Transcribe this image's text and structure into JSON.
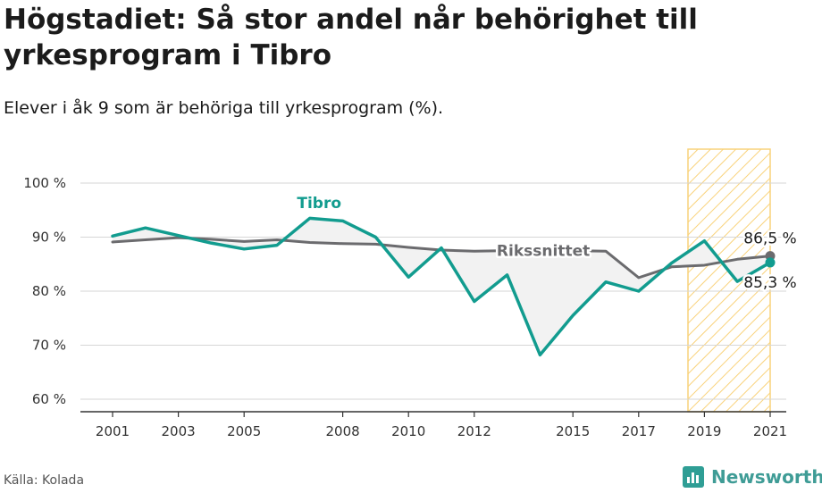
{
  "header": {
    "title": "Högstadiet: Så stor andel når behörighet till yrkesprogram i Tibro",
    "subtitle": "Elever i åk 9 som är behöriga till yrkesprogram (%)."
  },
  "footer": {
    "source": "Källa: Kolada",
    "brand": "Newsworthy"
  },
  "colors": {
    "tibro": "#129c8f",
    "riket": "#6b6b6e",
    "highlight": "#f9d27a",
    "fill": "#f2f2f2"
  },
  "chart_data": {
    "type": "line",
    "title": "Högstadiet: Så stor andel når behörighet till yrkesprogram i Tibro",
    "subtitle": "Elever i åk 9 som är behöriga till yrkesprogram (%).",
    "xlabel": "",
    "ylabel": "",
    "xlim": [
      2001,
      2021
    ],
    "ylim": [
      60,
      100
    ],
    "yticks": [
      60,
      70,
      80,
      90,
      100
    ],
    "ytick_labels": [
      "60 %",
      "70 %",
      "80 %",
      "90 %",
      "100 %"
    ],
    "xticks": [
      2001,
      2003,
      2005,
      2008,
      2010,
      2012,
      2015,
      2017,
      2019,
      2021
    ],
    "xtick_labels": [
      "2001",
      "2003",
      "2005",
      "2008",
      "2010",
      "2012",
      "2015",
      "2017",
      "2019",
      "2021"
    ],
    "grid": true,
    "highlight_range": [
      2018.5,
      2021
    ],
    "series": [
      {
        "name": "Tibro",
        "color": "#129c8f",
        "x": [
          2001,
          2002,
          2003,
          2004,
          2005,
          2006,
          2007,
          2008,
          2009,
          2010,
          2011,
          2012,
          2013,
          2014,
          2015,
          2016,
          2017,
          2018,
          2019,
          2020,
          2021
        ],
        "values": [
          90.2,
          91.7,
          90.3,
          88.9,
          87.8,
          88.5,
          93.5,
          93.0,
          90.0,
          82.6,
          88.0,
          78.1,
          83.0,
          68.2,
          75.5,
          81.7,
          80.0,
          85.2,
          89.3,
          81.8,
          85.3
        ]
      },
      {
        "name": "Rikssnittet",
        "color": "#6b6b6e",
        "x": [
          2001,
          2002,
          2003,
          2004,
          2005,
          2006,
          2007,
          2008,
          2009,
          2010,
          2011,
          2012,
          2013,
          2014,
          2015,
          2016,
          2017,
          2018,
          2019,
          2020,
          2021
        ],
        "values": [
          89.1,
          89.5,
          89.9,
          89.6,
          89.2,
          89.5,
          89.0,
          88.8,
          88.7,
          88.1,
          87.6,
          87.4,
          87.5,
          87.5,
          87.5,
          87.4,
          82.5,
          84.5,
          84.8,
          85.9,
          86.5
        ]
      }
    ],
    "end_labels": [
      {
        "series": "Rikssnittet",
        "text": "86,5 %"
      },
      {
        "series": "Tibro",
        "text": "85,3 %"
      }
    ]
  }
}
